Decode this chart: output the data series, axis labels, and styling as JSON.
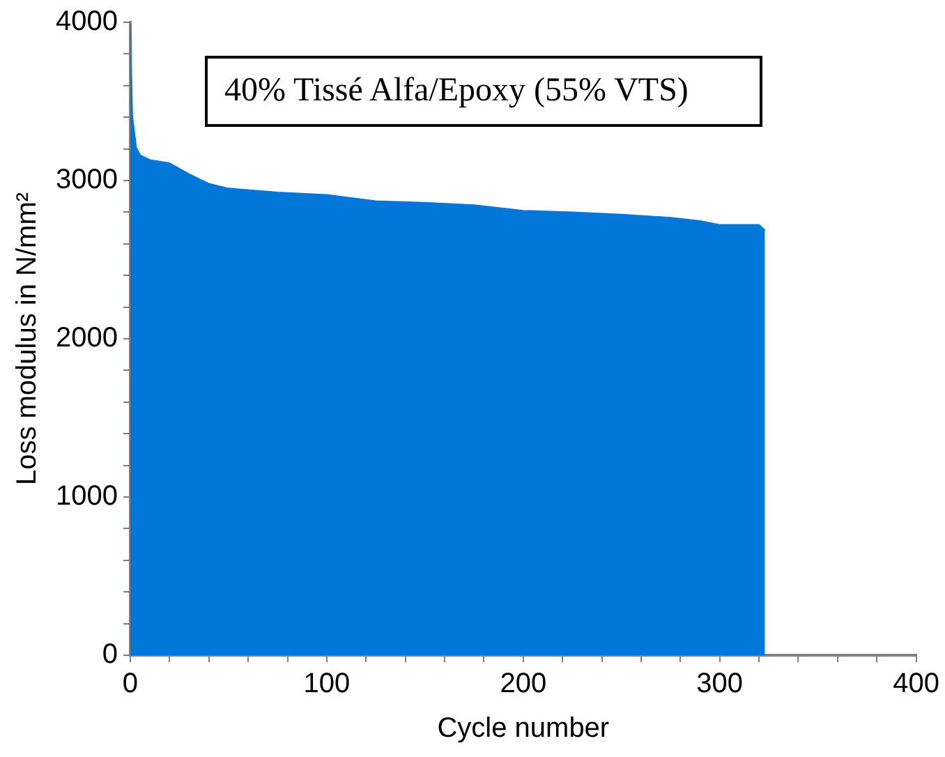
{
  "chart_data": {
    "type": "area",
    "xlabel": "Cycle number",
    "ylabel": "Loss modulus in N/mm²",
    "annotations": [
      "40% Tissé Alfa/Epoxy (55% VTS)"
    ],
    "x": [
      0,
      1,
      3,
      5,
      10,
      20,
      30,
      40,
      50,
      75,
      100,
      125,
      150,
      175,
      200,
      225,
      250,
      275,
      290,
      300,
      320,
      323
    ],
    "series": [
      {
        "color": "#0077d9",
        "values": [
          3990,
          3410,
          3210,
          3160,
          3130,
          3110,
          3040,
          2980,
          2950,
          2925,
          2910,
          2870,
          2860,
          2845,
          2810,
          2800,
          2785,
          2765,
          2745,
          2720,
          2720,
          2685
        ]
      }
    ],
    "xlim": [
      0,
      400
    ],
    "xticks": [
      0,
      {
        "value": 20,
        "label": null
      },
      {
        "value": 40,
        "label": null
      },
      {
        "value": 60,
        "label": null
      },
      {
        "value": 80,
        "label": null
      },
      100,
      {
        "value": 120,
        "label": null
      },
      {
        "value": 140,
        "label": null
      },
      {
        "value": 160,
        "label": null
      },
      {
        "value": 180,
        "label": null
      },
      200,
      {
        "value": 220,
        "label": null
      },
      {
        "value": 240,
        "label": null
      },
      {
        "value": 260,
        "label": null
      },
      {
        "value": 280,
        "label": null
      },
      300,
      {
        "value": 320,
        "label": null
      },
      {
        "value": 340,
        "label": null
      },
      {
        "value": 360,
        "label": null
      },
      {
        "value": 380,
        "label": null
      },
      400
    ],
    "ylim": [
      0,
      4000
    ],
    "yticks": [
      0,
      {
        "value": 200,
        "label": null
      },
      {
        "value": 400,
        "label": null
      },
      {
        "value": 600,
        "label": null
      },
      {
        "value": 800,
        "label": null
      },
      1000,
      {
        "value": 1200,
        "label": null
      },
      {
        "value": 1400,
        "label": null
      },
      {
        "value": 1600,
        "label": null
      },
      {
        "value": 1800,
        "label": null
      },
      2000,
      {
        "value": 2200,
        "label": null
      },
      {
        "value": 2400,
        "label": null
      },
      {
        "value": 2600,
        "label": null
      },
      {
        "value": 2800,
        "label": null
      },
      3000,
      {
        "value": 3200,
        "label": null
      },
      {
        "value": 3400,
        "label": null
      },
      {
        "value": 3600,
        "label": null
      },
      {
        "value": 3800,
        "label": null
      },
      4000
    ],
    "grid": false,
    "legend": false
  }
}
